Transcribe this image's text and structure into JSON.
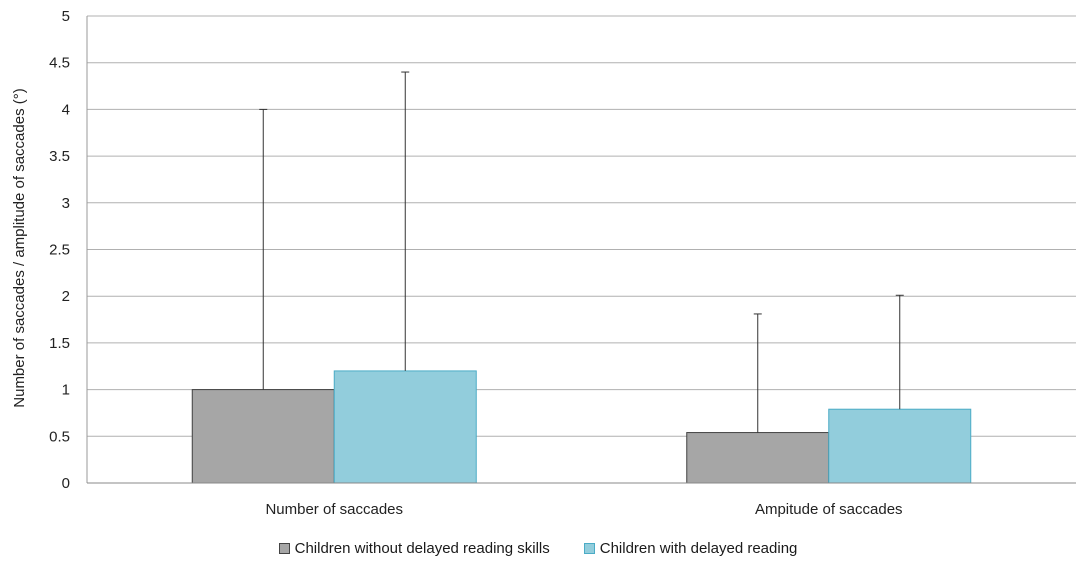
{
  "chart_data": {
    "type": "bar",
    "title": "",
    "xlabel": "",
    "ylabel": "Number of saccades / amplitude of saccades (°)",
    "categories": [
      "Number of saccades",
      "Ampitude of saccades"
    ],
    "series": [
      {
        "name": "Children without delayed reading skills",
        "color": "#a6a6a6",
        "values": [
          1.0,
          0.54
        ],
        "error_upper": [
          4.0,
          1.81
        ]
      },
      {
        "name": "Children with delayed reading",
        "color": "#92cddc",
        "values": [
          1.2,
          0.79
        ],
        "error_upper": [
          4.4,
          2.01
        ]
      }
    ],
    "ylim": [
      0,
      5
    ],
    "yticks": [
      "0",
      "0.5",
      "1",
      "1.5",
      "2",
      "2.5",
      "3",
      "3.5",
      "4",
      "4.5",
      "5"
    ],
    "grid": true,
    "legend_position": "bottom"
  }
}
